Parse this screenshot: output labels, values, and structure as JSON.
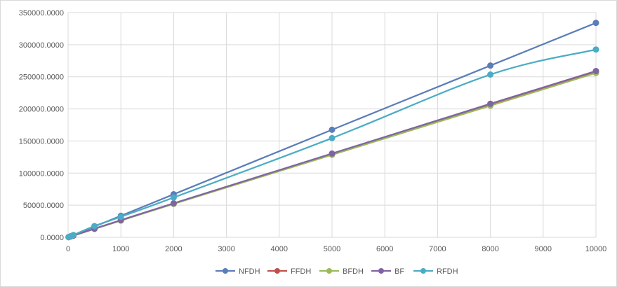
{
  "chart_data": {
    "type": "line",
    "title": "",
    "xlabel": "",
    "ylabel": "",
    "xlim": [
      0,
      10000
    ],
    "ylim": [
      0,
      350000
    ],
    "x_ticks": [
      0,
      1000,
      2000,
      3000,
      4000,
      5000,
      6000,
      7000,
      8000,
      9000,
      10000
    ],
    "x_tick_labels": [
      "0",
      "1000",
      "2000",
      "3000",
      "4000",
      "5000",
      "6000",
      "7000",
      "8000",
      "9000",
      "10000"
    ],
    "y_ticks": [
      0,
      50000,
      100000,
      150000,
      200000,
      250000,
      300000,
      350000
    ],
    "y_tick_labels": [
      "0.0000",
      "50000.0000",
      "100000.0000",
      "150000.0000",
      "200000.0000",
      "250000.0000",
      "300000.0000",
      "350000.0000"
    ],
    "grid": true,
    "legend_position": "bottom",
    "x": [
      10,
      50,
      100,
      500,
      1000,
      2000,
      5000,
      8000,
      10000
    ],
    "series": [
      {
        "name": "NFDH",
        "color": "#5B7DB8",
        "values": [
          300,
          1700,
          3400,
          16800,
          33500,
          67000,
          167500,
          267500,
          334000
        ]
      },
      {
        "name": "FFDH",
        "color": "#C0504D",
        "values": [
          270,
          1350,
          2650,
          13300,
          26500,
          52500,
          130000,
          207000,
          258000
        ]
      },
      {
        "name": "BFDH",
        "color": "#9BBB59",
        "values": [
          260,
          1300,
          2600,
          13000,
          26000,
          52000,
          128500,
          205000,
          256000
        ]
      },
      {
        "name": "BF",
        "color": "#8064A2",
        "values": [
          275,
          1360,
          2680,
          13400,
          26700,
          53000,
          130500,
          208000,
          259000
        ]
      },
      {
        "name": "RFDH",
        "color": "#4BACC6",
        "values": [
          320,
          1800,
          3600,
          17500,
          32000,
          62000,
          154500,
          253500,
          292500
        ]
      }
    ]
  }
}
